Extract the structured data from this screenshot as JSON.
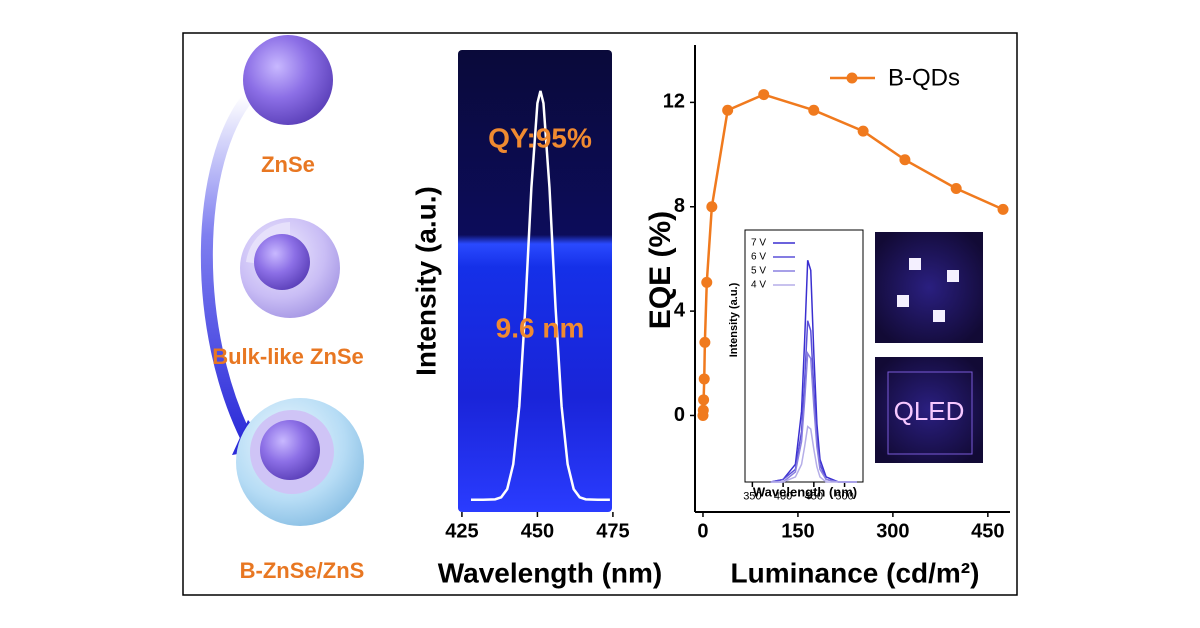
{
  "chart_data": [
    {
      "type": "line",
      "xlabel": "Wavelength (nm)",
      "ylabel": "Intensity (a.u.)",
      "annotations": [
        "QY:95%",
        "9.6 nm"
      ],
      "color": "#ffffff",
      "x": [
        428,
        432,
        436,
        438,
        440,
        442,
        444,
        446,
        448,
        450,
        451,
        452,
        454,
        456,
        458,
        460,
        462,
        464,
        466,
        470,
        474
      ],
      "values": [
        0,
        0,
        0.001,
        0.006,
        0.026,
        0.087,
        0.229,
        0.471,
        0.763,
        0.97,
        1,
        0.97,
        0.763,
        0.471,
        0.229,
        0.087,
        0.026,
        0.006,
        0.001,
        0,
        0
      ],
      "xlim": [
        423.7,
        474.7
      ],
      "ylim": [
        -0.03,
        1.1
      ],
      "xticks": [
        425,
        450,
        475
      ]
    },
    {
      "type": "line",
      "xlabel": "Luminance (cd/m²)",
      "ylabel": "EQE (%)",
      "x": [
        0,
        0.5,
        1,
        2,
        3,
        6,
        14,
        39,
        96,
        175,
        253,
        319,
        400,
        474
      ],
      "series": [
        {
          "name": "B-QDs",
          "color": "#f07a1e",
          "values": [
            0,
            0.2,
            0.6,
            1.4,
            2.8,
            5.1,
            8.0,
            11.7,
            12.3,
            11.7,
            10.9,
            9.8,
            8.7,
            7.9
          ]
        }
      ],
      "xlim": [
        -12.6,
        485
      ],
      "ylim": [
        -3.7,
        14.2
      ],
      "xticks": [
        0,
        150,
        300,
        450
      ],
      "yticks": [
        0,
        4,
        8,
        12
      ],
      "legend": "upper right"
    },
    {
      "type": "line",
      "xlabel": "Wavelength (nm)",
      "ylabel": "Intensity (a.u.)",
      "x": [
        380,
        400,
        420,
        430,
        435,
        440,
        445,
        450,
        455,
        460,
        470,
        490,
        520
      ],
      "series": [
        {
          "name": "7 V",
          "color": "#3a2fd0",
          "values": [
            0,
            0.01,
            0.07,
            0.28,
            0.56,
            0.88,
            0.84,
            0.51,
            0.23,
            0.09,
            0.02,
            0,
            0
          ]
        },
        {
          "name": "6 V",
          "color": "#5b50d8",
          "values": [
            0,
            0.01,
            0.05,
            0.2,
            0.4,
            0.64,
            0.6,
            0.37,
            0.17,
            0.07,
            0.01,
            0,
            0
          ]
        },
        {
          "name": "5 V",
          "color": "#8a80e0",
          "values": [
            0,
            0,
            0.04,
            0.16,
            0.32,
            0.51,
            0.49,
            0.3,
            0.14,
            0.05,
            0.01,
            0,
            0
          ]
        },
        {
          "name": "4 V",
          "color": "#b5aee8",
          "values": [
            0,
            0,
            0.02,
            0.07,
            0.14,
            0.22,
            0.21,
            0.13,
            0.06,
            0.02,
            0,
            0,
            0
          ]
        }
      ],
      "xlim": [
        338,
        530
      ],
      "ylim": [
        0,
        1
      ],
      "xticks": [
        350,
        400,
        450,
        500
      ],
      "legend": "upper left"
    }
  ],
  "figure": {
    "labels": [
      "ZnSe",
      "Bulk-like ZnSe",
      "B-ZnSe/ZnS"
    ],
    "device_text": "QLED"
  }
}
